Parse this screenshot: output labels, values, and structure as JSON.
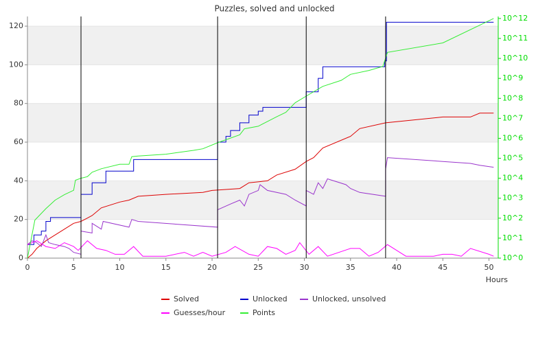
{
  "chart_data": {
    "type": "line",
    "title": "Puzzles, solved and unlocked",
    "x_label": "Hours",
    "xlim": [
      0,
      51
    ],
    "xticks": [
      0,
      5,
      10,
      15,
      20,
      25,
      30,
      35,
      40,
      45,
      50
    ],
    "ylim": [
      0,
      125
    ],
    "yticks": [
      0,
      20,
      40,
      60,
      80,
      100,
      120
    ],
    "y2lim": [
      1,
      1260000000000
    ],
    "y2scale": "log",
    "y2color": "#00dd00",
    "y2ticks": [
      {
        "value": 1,
        "label": "10^0"
      },
      {
        "value": 10,
        "label": "10^1"
      },
      {
        "value": 100,
        "label": "10^2"
      },
      {
        "value": 1000,
        "label": "10^3"
      },
      {
        "value": 10000,
        "label": "10^4"
      },
      {
        "value": 100000,
        "label": "10^5"
      },
      {
        "value": 1000000,
        "label": "10^6"
      },
      {
        "value": 10000000,
        "label": "10^7"
      },
      {
        "value": 100000000,
        "label": "10^8"
      },
      {
        "value": 1000000000,
        "label": "10^9"
      },
      {
        "value": 10000000000,
        "label": "10^10"
      },
      {
        "value": 100000000000,
        "label": "10^11"
      },
      {
        "value": 1000000000000,
        "label": "10^12"
      }
    ],
    "grid": "bands",
    "legend": "bottom",
    "events": [
      5.8,
      20.6,
      30.2,
      38.8
    ],
    "series": [
      {
        "name": "Solved",
        "color": "#dd0000",
        "x": [
          0,
          0.5,
          1,
          2,
          3,
          4,
          5,
          5.8,
          7,
          8,
          10,
          11,
          12,
          15,
          19,
          20,
          23,
          24,
          26,
          27,
          29,
          30.2,
          31,
          32,
          35,
          36,
          38.8,
          45,
          48,
          49,
          50.5
        ],
        "values": [
          0,
          2,
          5,
          9,
          12,
          15,
          18,
          19,
          22,
          26,
          29,
          30,
          32,
          33,
          34,
          35,
          36,
          39,
          40,
          43,
          46,
          50,
          52,
          57,
          63,
          67,
          70,
          73,
          73,
          75,
          75
        ]
      },
      {
        "name": "Unlocked",
        "color": "#0000cc",
        "x": [
          0,
          0.7,
          0.7,
          1.5,
          1.5,
          2,
          2,
          2.5,
          2.5,
          5.8,
          5.8,
          7,
          7,
          8.5,
          8.5,
          11.5,
          11.5,
          20.6,
          20.6,
          21.5,
          21.5,
          22,
          22,
          23,
          23,
          24,
          24,
          25,
          25,
          25.5,
          25.5,
          30.2,
          30.2,
          31.5,
          31.5,
          32,
          32,
          38.7,
          38.7,
          38.9,
          38.9,
          50.5
        ],
        "values": [
          7,
          7,
          12,
          12,
          14,
          14,
          19,
          19,
          21,
          21,
          33,
          33,
          39,
          39,
          45,
          45,
          51,
          51,
          60,
          60,
          63,
          63,
          66,
          66,
          70,
          70,
          74,
          74,
          76,
          76,
          78,
          78,
          86,
          86,
          93,
          93,
          99,
          99,
          102,
          102,
          122,
          122
        ]
      },
      {
        "name": "Unlocked, unsolved",
        "color": "#9933cc",
        "x": [
          0,
          0.5,
          1,
          1.5,
          2,
          2.3,
          3,
          4,
          4.5,
          5,
          5.8,
          5.8,
          7,
          7,
          8,
          8.2,
          11,
          11.3,
          12,
          20.6,
          20.6,
          22,
          23,
          23.5,
          24,
          25,
          25.2,
          26,
          28,
          29,
          30.2,
          30.2,
          31,
          31.5,
          32,
          32.5,
          34.5,
          35,
          36,
          38.8,
          38.8,
          39,
          45,
          48,
          49,
          50.5
        ],
        "values": [
          7,
          9,
          8,
          6,
          12,
          8,
          7,
          6,
          5,
          3,
          2,
          14,
          13,
          18,
          15,
          19,
          16,
          20,
          19,
          16,
          25,
          28,
          30,
          27,
          33,
          35,
          38,
          35,
          33,
          30,
          27,
          35,
          33,
          39,
          36,
          41,
          38,
          36,
          34,
          32,
          46,
          52,
          50,
          49,
          48,
          47
        ]
      },
      {
        "name": "Guesses/hour",
        "color": "#ff00ff",
        "x": [
          0,
          1,
          2,
          3,
          4,
          5,
          5.5,
          6.5,
          7.5,
          8.5,
          9.5,
          10.5,
          11.5,
          12.5,
          15,
          17,
          18,
          19,
          20,
          21.5,
          22.5,
          24,
          25,
          26,
          27,
          28,
          29,
          29.5,
          30.5,
          31.5,
          32.5,
          35,
          36,
          37,
          38,
          39,
          40,
          41,
          44,
          45,
          46,
          47,
          48,
          50,
          50.5
        ],
        "values": [
          7,
          9,
          6,
          5,
          8,
          6,
          4,
          9,
          5,
          4,
          2,
          2,
          6,
          1,
          1,
          3,
          1,
          3,
          1,
          3,
          6,
          2,
          1,
          6,
          5,
          2,
          4,
          8,
          2,
          6,
          1,
          5,
          5,
          1,
          3,
          7,
          4,
          1,
          1,
          2,
          2,
          1,
          5,
          2,
          1
        ]
      },
      {
        "name": "Points",
        "color": "#33ee33",
        "axis": "y2",
        "x": [
          0,
          0.8,
          2,
          3,
          4,
          5,
          5.2,
          5.8,
          6.5,
          7,
          8,
          10,
          11,
          11.3,
          12,
          15,
          18,
          19,
          20.6,
          23,
          23.5,
          25,
          27,
          28,
          29,
          30.2,
          32,
          34,
          35,
          37,
          38.5,
          39,
          45,
          50.5
        ],
        "values": [
          1,
          80,
          300,
          800,
          1500,
          2500,
          8000,
          10000,
          12000,
          20000,
          30000,
          50000,
          50000,
          120000,
          130000,
          160000,
          250000,
          300000,
          600000,
          1500000,
          3000000,
          4000000,
          12000000,
          20000000,
          60000000,
          130000000,
          400000000,
          800000000,
          1600000000,
          2500000000,
          4000000000,
          20000000000,
          60000000000,
          1000000000000
        ]
      }
    ]
  }
}
